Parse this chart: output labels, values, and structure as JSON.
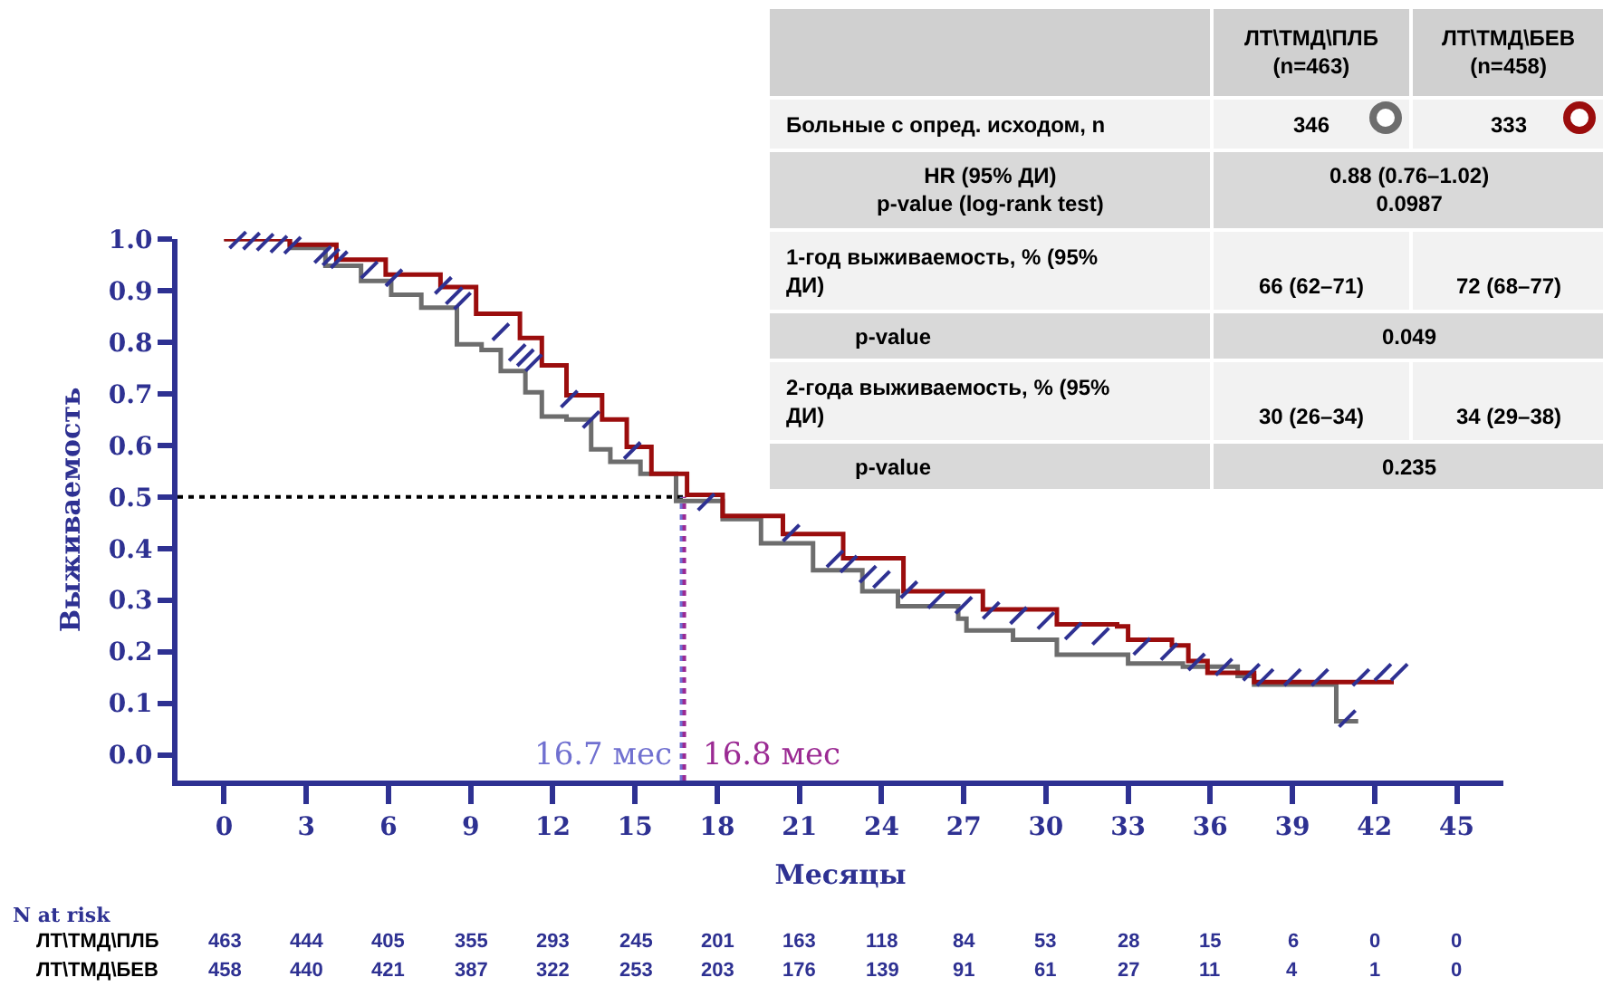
{
  "chart_data": [
    {
      "type": "step",
      "ylabel": "Выживаемость",
      "xlabel": "Месяцы",
      "xlim": [
        -1.7,
        46.7
      ],
      "xticks": [
        0,
        3,
        6,
        9,
        12,
        15,
        18,
        21,
        24,
        27,
        30,
        33,
        36,
        39,
        42,
        45
      ],
      "ylim": [
        -0.05,
        1.0
      ],
      "yticks": [
        {
          "value": 0,
          "label": "0.0"
        },
        0.1,
        0.2,
        0.3,
        0.4,
        0.5,
        0.6,
        0.7,
        0.8,
        0.9,
        {
          "value": 1,
          "label": "1.0"
        }
      ],
      "grid": false,
      "series": [
        {
          "type": "step",
          "color": "#6d6d6d",
          "x": [
            0,
            2.4,
            3.7,
            5.0,
            6.1,
            7.2,
            8.5,
            9.4,
            10.1,
            11.0,
            11.6,
            12.5,
            13.4,
            14.1,
            15.2,
            16.5,
            18.2,
            19.6,
            21.5,
            23.3,
            24.6,
            26.8,
            27.1,
            28.8,
            30.4,
            33.0,
            35.0,
            37.0,
            37.6,
            40.6,
            41.4
          ],
          "values": [
            1.0,
            0.983,
            0.948,
            0.919,
            0.892,
            0.867,
            0.796,
            0.785,
            0.744,
            0.703,
            0.656,
            0.65,
            0.592,
            0.568,
            0.545,
            0.492,
            0.457,
            0.41,
            0.358,
            0.317,
            0.288,
            0.264,
            0.241,
            0.223,
            0.194,
            0.177,
            0.171,
            0.153,
            0.136,
            0.065,
            0.065
          ]
        },
        {
          "type": "step",
          "color": "#9b0d0d",
          "x": [
            0,
            2.4,
            4.1,
            5.9,
            7.9,
            9.2,
            10.8,
            11.6,
            12.5,
            13.8,
            14.7,
            15.6,
            16.9,
            18.2,
            20.4,
            22.6,
            24.8,
            27.7,
            30.4,
            32.6,
            33.0,
            34.6,
            35.2,
            35.9,
            37.6,
            42.7
          ],
          "values": [
            1.0,
            0.989,
            0.96,
            0.931,
            0.907,
            0.855,
            0.808,
            0.755,
            0.697,
            0.65,
            0.597,
            0.545,
            0.504,
            0.463,
            0.428,
            0.381,
            0.317,
            0.282,
            0.253,
            0.249,
            0.223,
            0.212,
            0.182,
            0.159,
            0.141,
            0.141
          ]
        },
        {
          "type": "scatter",
          "color": "#2e3192",
          "x": [
            0.5,
            1.0,
            1.5,
            2.0,
            2.5,
            3.6,
            3.9,
            4.2,
            5.3,
            6.2,
            8.0,
            8.4,
            8.7,
            10.1,
            10.7,
            11.0,
            11.3,
            12.6,
            13.4,
            14.9,
            17.6,
            20.7,
            22.3,
            22.8,
            23.5,
            24.0,
            25.0,
            26.0,
            27.0,
            28.0,
            29.0,
            30.0,
            31.0,
            32.0,
            33.5,
            34.5,
            35.5,
            36.5,
            37.5,
            38.0,
            39.0,
            40.0,
            41.0,
            41.5,
            42.3,
            42.9
          ],
          "values": [
            0.998,
            0.996,
            0.994,
            0.99,
            0.988,
            0.97,
            0.965,
            0.96,
            0.94,
            0.925,
            0.91,
            0.89,
            0.88,
            0.82,
            0.78,
            0.77,
            0.76,
            0.69,
            0.65,
            0.59,
            0.49,
            0.43,
            0.38,
            0.37,
            0.35,
            0.34,
            0.32,
            0.3,
            0.29,
            0.28,
            0.27,
            0.26,
            0.24,
            0.23,
            0.21,
            0.2,
            0.18,
            0.17,
            0.16,
            0.15,
            0.15,
            0.15,
            0.07,
            0.15,
            0.16,
            0.16
          ]
        }
      ],
      "ref_lines": [
        {
          "axis": "y",
          "value": 0.5,
          "color": "#000000",
          "line_style": "dotted"
        },
        {
          "axis": "x",
          "value": 16.7,
          "label": "16.7 мес",
          "color": "#7070d0",
          "line_style": "dotted"
        },
        {
          "axis": "x",
          "value": 16.8,
          "label": "16.8 мес",
          "color": "#9b2a93",
          "line_style": "dotted"
        }
      ]
    },
    {
      "type": "other",
      "annotations": [
        "ЛТ\\ТМД\\ПЛБ\n(n=463)",
        "ЛТ\\ТМД\\БЕВ\n(n=458)",
        "Больные с опред. исходом, n",
        "346",
        "333",
        "HR (95% ДИ)\np-value (log-rank test)",
        "0.88 (0.76–1.02)\n0.0987",
        "1-год выживаемость, % (95%\nДИ)",
        "66 (62–71)",
        "72 (68–77)",
        "p-value",
        "0.049",
        "2-года выживаемость, % (95%\nДИ)",
        "30 (26–34)",
        "34 (29–38)",
        "p-value",
        "0.235"
      ]
    },
    {
      "type": "other",
      "annotations": [
        "N at risk",
        "ЛТ\\ТМД\\ПЛБ",
        "463",
        "444",
        "405",
        "355",
        "293",
        "245",
        "201",
        "163",
        "118",
        "84",
        "53",
        "28",
        "15",
        "6",
        "0",
        "0",
        "ЛТ\\ТМД\\БЕВ",
        "458",
        "440",
        "421",
        "387",
        "322",
        "253",
        "203",
        "176",
        "139",
        "91",
        "61",
        "27",
        "11",
        "4",
        "1",
        "0"
      ]
    }
  ]
}
